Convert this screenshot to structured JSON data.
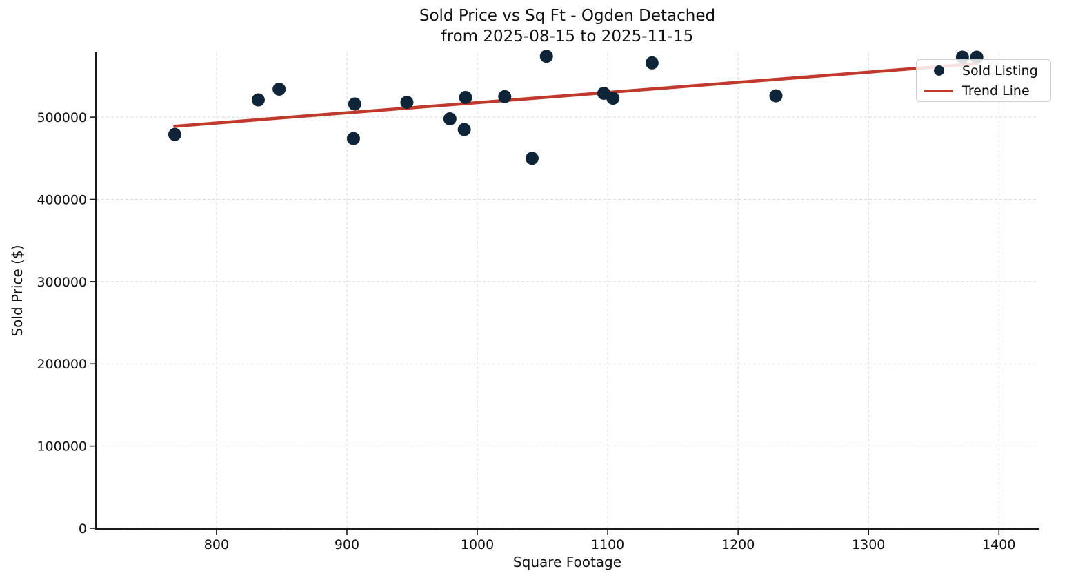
{
  "title": {
    "line1": "Sold Price vs Sq Ft - Ogden Detached",
    "line2": "from 2025-08-15 to 2025-11-15"
  },
  "chart_data": {
    "type": "scatter",
    "title": "Sold Price vs Sq Ft - Ogden Detached from 2025-08-15 to 2025-11-15",
    "title_lines": [
      "Sold Price vs Sq Ft - Ogden Detached",
      "from 2025-08-15 to 2025-11-15"
    ],
    "xlabel": "Square Footage",
    "ylabel": "Sold Price ($)",
    "xlim": [
      708,
      1430
    ],
    "ylim": [
      0,
      578000
    ],
    "x_ticks": [
      800,
      900,
      1000,
      1100,
      1200,
      1300,
      1400
    ],
    "y_ticks": [
      0,
      100000,
      200000,
      300000,
      400000,
      500000
    ],
    "grid": true,
    "grid_style": "dashed",
    "legend_position": "upper right",
    "series": [
      {
        "name": "Sold Listing",
        "type": "scatter",
        "color": "#0e2438",
        "points": [
          [
            768,
            479000
          ],
          [
            832,
            521000
          ],
          [
            848,
            534000
          ],
          [
            905,
            474000
          ],
          [
            906,
            516000
          ],
          [
            946,
            518000
          ],
          [
            979,
            498000
          ],
          [
            990,
            485000
          ],
          [
            991,
            524000
          ],
          [
            1021,
            525000
          ],
          [
            1042,
            450000
          ],
          [
            1053,
            574000
          ],
          [
            1097,
            529000
          ],
          [
            1104,
            523000
          ],
          [
            1134,
            566000
          ],
          [
            1229,
            526000
          ],
          [
            1372,
            573000
          ],
          [
            1383,
            573000
          ]
        ]
      },
      {
        "name": "Trend Line",
        "type": "line",
        "color": "#c0392b",
        "points": [
          [
            768,
            489000
          ],
          [
            1383,
            565000
          ]
        ]
      }
    ]
  },
  "colors": {
    "point": "#0e2438",
    "trend": "#c0392b",
    "gridline": "#d9d9d9",
    "spine": "#1a1a1a",
    "text": "#111111",
    "legend_border": "#cccccc"
  }
}
